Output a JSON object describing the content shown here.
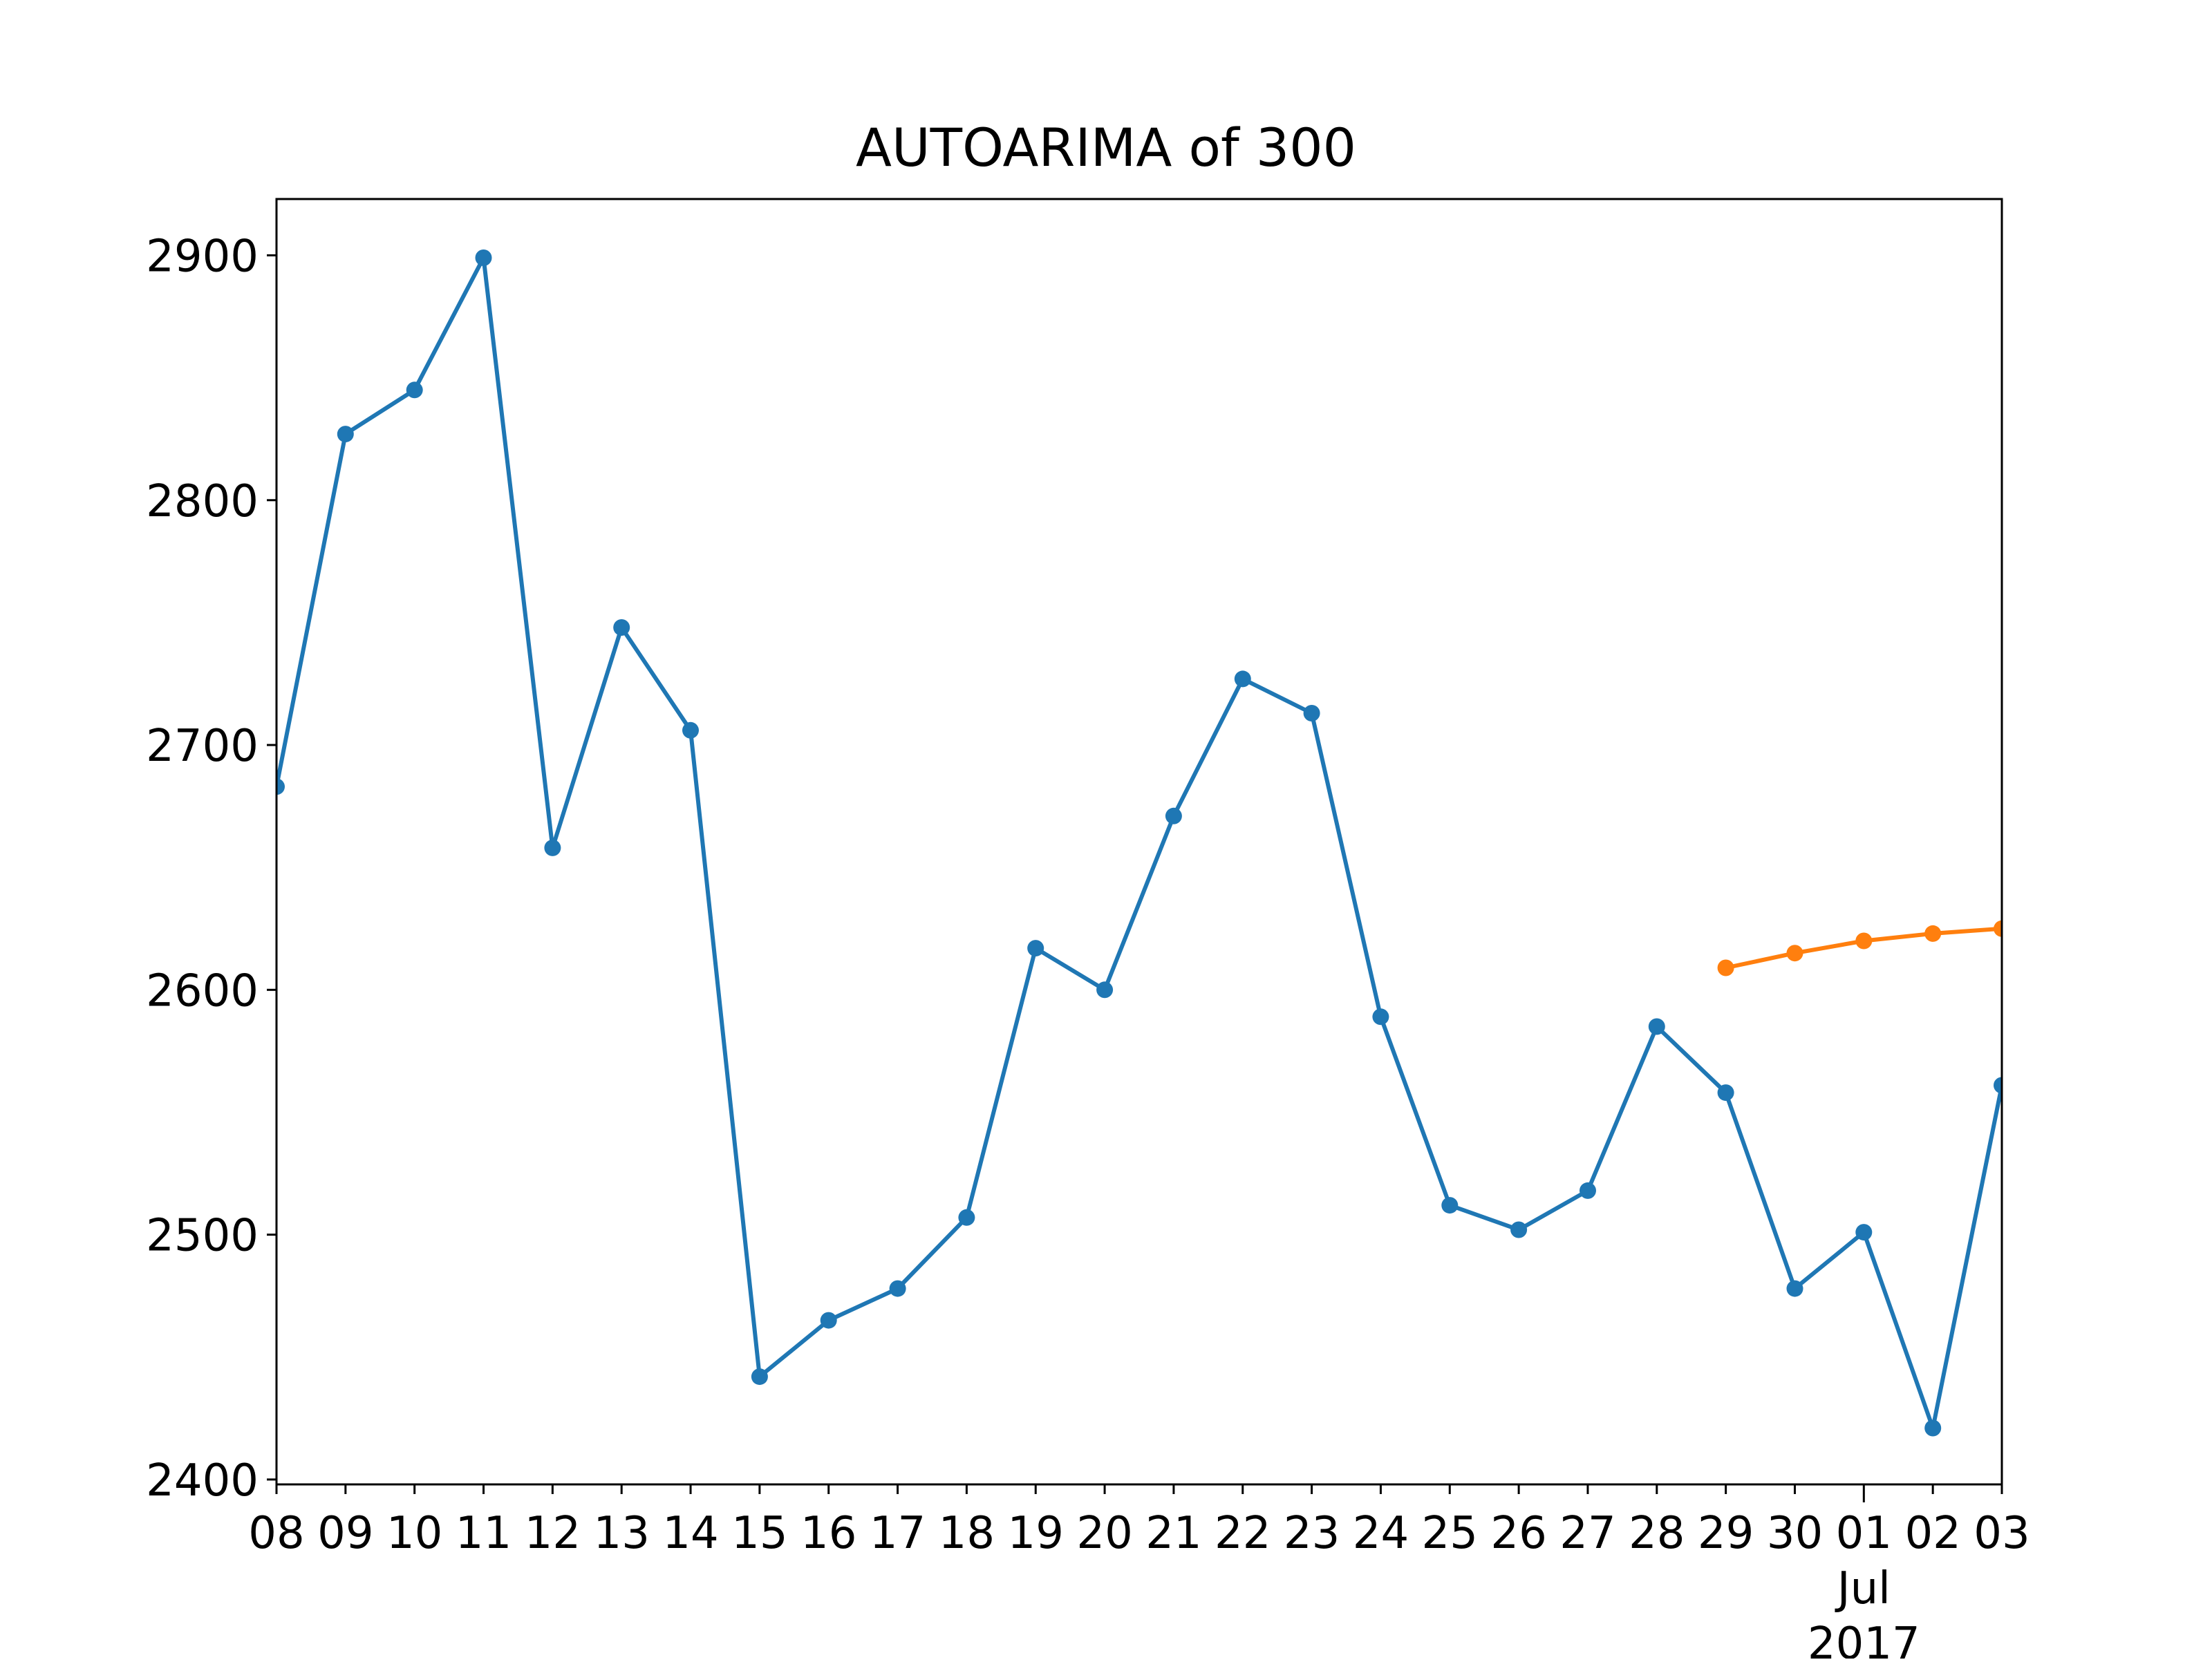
{
  "chart_data": {
    "type": "line",
    "title": "AUTOARIMA of 300",
    "xlabel": "",
    "ylabel": "",
    "x": [
      "2017-06-08",
      "2017-06-09",
      "2017-06-10",
      "2017-06-11",
      "2017-06-12",
      "2017-06-13",
      "2017-06-14",
      "2017-06-15",
      "2017-06-16",
      "2017-06-17",
      "2017-06-18",
      "2017-06-19",
      "2017-06-20",
      "2017-06-21",
      "2017-06-22",
      "2017-06-23",
      "2017-06-24",
      "2017-06-25",
      "2017-06-26",
      "2017-06-27",
      "2017-06-28",
      "2017-06-29",
      "2017-06-30",
      "2017-07-01",
      "2017-07-02",
      "2017-07-03"
    ],
    "x_tick_labels": [
      "08",
      "09",
      "10",
      "11",
      "12",
      "13",
      "14",
      "15",
      "16",
      "17",
      "18",
      "19",
      "20",
      "21",
      "22",
      "23",
      "24",
      "25",
      "26",
      "27",
      "28",
      "29",
      "30",
      "01",
      "02",
      "03"
    ],
    "x_tick_sublabels": {
      "01": [
        "Jul",
        "2017"
      ]
    },
    "xlim": [
      "2017-06-08",
      "2017-07-03"
    ],
    "ylim": [
      2398,
      2923
    ],
    "y_ticks": [
      2400,
      2500,
      2600,
      2700,
      2800,
      2900
    ],
    "grid": false,
    "series": [
      {
        "color": "#1f77b4",
        "x": [
          "2017-06-08",
          "2017-06-09",
          "2017-06-10",
          "2017-06-11",
          "2017-06-12",
          "2017-06-13",
          "2017-06-14",
          "2017-06-15",
          "2017-06-16",
          "2017-06-17",
          "2017-06-18",
          "2017-06-19",
          "2017-06-20",
          "2017-06-21",
          "2017-06-22",
          "2017-06-23",
          "2017-06-24",
          "2017-06-25",
          "2017-06-26",
          "2017-06-27",
          "2017-06-28",
          "2017-06-29",
          "2017-06-30",
          "2017-07-01",
          "2017-07-02",
          "2017-07-03"
        ],
        "values": [
          2683,
          2827,
          2845,
          2899,
          2658,
          2748,
          2706,
          2442,
          2465,
          2478,
          2507,
          2617,
          2600,
          2671,
          2727,
          2713,
          2589,
          2512,
          2502,
          2518,
          2585,
          2558,
          2478,
          2501,
          2421,
          2561
        ]
      },
      {
        "color": "#ff7f0e",
        "x": [
          "2017-06-29",
          "2017-06-30",
          "2017-07-01",
          "2017-07-02",
          "2017-07-03"
        ],
        "values": [
          2609,
          2615,
          2620,
          2623,
          2625
        ]
      }
    ]
  }
}
